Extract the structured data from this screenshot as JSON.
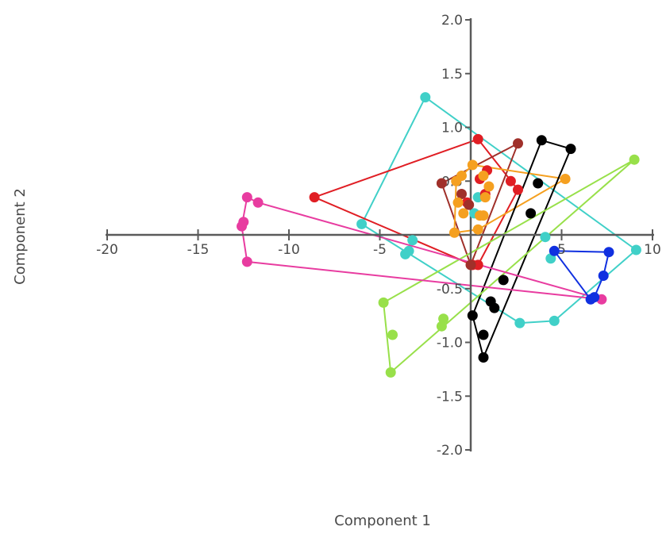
{
  "chart_data": {
    "type": "scatter",
    "xlabel": "Component 1",
    "ylabel": "Component 2",
    "xlim": [
      -20,
      10
    ],
    "ylim": [
      -2.0,
      2.0
    ],
    "x_ticks": [
      -20,
      -15,
      -10,
      -5,
      0,
      5,
      10
    ],
    "x_tick_labels": [
      "-20",
      "-15",
      "-10",
      "-5",
      "",
      "5",
      "10"
    ],
    "y_ticks": [
      -2.0,
      -1.5,
      -1.0,
      -0.5,
      0.0,
      0.5,
      1.0,
      1.5,
      2.0
    ],
    "y_tick_labels": [
      "-2.0",
      "-1.5",
      "-1.0",
      "-0.5",
      "",
      "0.5",
      "1.0",
      "1.5",
      "2.0"
    ],
    "grid": false,
    "series": [
      {
        "color": "#40d0c8",
        "points": [
          [
            -2.5,
            1.28
          ],
          [
            -6.0,
            0.1
          ],
          [
            -3.2,
            -0.05
          ],
          [
            -3.6,
            -0.18
          ],
          [
            -3.4,
            -0.15
          ],
          [
            4.1,
            -0.02
          ],
          [
            4.4,
            -0.22
          ],
          [
            9.1,
            -0.14
          ],
          [
            4.6,
            -0.8
          ],
          [
            2.7,
            -0.82
          ],
          [
            0.4,
            0.35
          ],
          [
            0.2,
            0.2
          ]
        ],
        "hull": [
          [
            -2.5,
            1.28
          ],
          [
            9.1,
            -0.14
          ],
          [
            4.6,
            -0.8
          ],
          [
            2.7,
            -0.82
          ],
          [
            -6.0,
            0.1
          ]
        ]
      },
      {
        "color": "#e01e24",
        "points": [
          [
            0.4,
            0.89
          ],
          [
            -8.6,
            0.35
          ],
          [
            0.5,
            0.52
          ],
          [
            0.9,
            0.6
          ],
          [
            0.8,
            0.38
          ],
          [
            2.2,
            0.5
          ],
          [
            2.6,
            0.42
          ],
          [
            0.1,
            -0.28
          ],
          [
            0.4,
            -0.28
          ],
          [
            -0.2,
            0.3
          ]
        ],
        "hull": [
          [
            0.4,
            0.89
          ],
          [
            2.6,
            0.42
          ],
          [
            0.4,
            -0.28
          ],
          [
            0.1,
            -0.28
          ],
          [
            -8.6,
            0.35
          ]
        ]
      },
      {
        "color": "#a0302a",
        "points": [
          [
            2.6,
            0.85
          ],
          [
            -1.6,
            0.48
          ],
          [
            -0.5,
            0.38
          ],
          [
            -0.1,
            0.28
          ],
          [
            0.0,
            -0.28
          ]
        ],
        "hull": [
          [
            2.6,
            0.85
          ],
          [
            0.0,
            -0.28
          ],
          [
            -1.6,
            0.48
          ]
        ]
      },
      {
        "color": "#f5a020",
        "points": [
          [
            -0.5,
            0.55
          ],
          [
            -0.8,
            0.5
          ],
          [
            -0.7,
            0.3
          ],
          [
            -0.4,
            0.2
          ],
          [
            0.1,
            0.65
          ],
          [
            0.7,
            0.55
          ],
          [
            1.0,
            0.45
          ],
          [
            0.5,
            0.18
          ],
          [
            0.7,
            0.18
          ],
          [
            0.4,
            0.05
          ],
          [
            5.2,
            0.52
          ],
          [
            -0.9,
            0.02
          ],
          [
            0.8,
            0.35
          ]
        ],
        "hull": [
          [
            0.1,
            0.65
          ],
          [
            5.2,
            0.52
          ],
          [
            0.4,
            0.05
          ],
          [
            -0.9,
            0.02
          ],
          [
            -0.8,
            0.5
          ]
        ]
      },
      {
        "color": "#000000",
        "points": [
          [
            3.9,
            0.88
          ],
          [
            5.5,
            0.8
          ],
          [
            3.7,
            0.48
          ],
          [
            3.3,
            0.2
          ],
          [
            1.8,
            -0.42
          ],
          [
            1.1,
            -0.62
          ],
          [
            1.3,
            -0.68
          ],
          [
            0.1,
            -0.75
          ],
          [
            0.7,
            -0.93
          ],
          [
            0.7,
            -1.14
          ]
        ],
        "hull": [
          [
            3.9,
            0.88
          ],
          [
            5.5,
            0.8
          ],
          [
            0.7,
            -1.14
          ],
          [
            0.1,
            -0.75
          ]
        ]
      },
      {
        "color": "#98e04a",
        "points": [
          [
            9.0,
            0.7
          ],
          [
            -4.8,
            -0.63
          ],
          [
            -4.3,
            -0.93
          ],
          [
            -1.5,
            -0.78
          ],
          [
            -1.6,
            -0.85
          ],
          [
            -4.4,
            -1.28
          ]
        ],
        "hull": [
          [
            9.0,
            0.7
          ],
          [
            -4.4,
            -1.28
          ],
          [
            -4.8,
            -0.63
          ]
        ]
      },
      {
        "color": "#e83ca0",
        "points": [
          [
            -12.3,
            0.35
          ],
          [
            -11.7,
            0.3
          ],
          [
            -12.5,
            0.12
          ],
          [
            -12.6,
            0.08
          ],
          [
            -12.3,
            -0.25
          ],
          [
            7.2,
            -0.6
          ]
        ],
        "hull": [
          [
            -12.3,
            0.35
          ],
          [
            -11.7,
            0.3
          ],
          [
            7.2,
            -0.6
          ],
          [
            -12.3,
            -0.25
          ],
          [
            -12.6,
            0.08
          ]
        ]
      },
      {
        "color": "#1030e0",
        "points": [
          [
            4.6,
            -0.15
          ],
          [
            7.6,
            -0.16
          ],
          [
            7.3,
            -0.38
          ],
          [
            6.8,
            -0.58
          ],
          [
            6.6,
            -0.6
          ]
        ],
        "hull": [
          [
            4.6,
            -0.15
          ],
          [
            7.6,
            -0.16
          ],
          [
            7.3,
            -0.38
          ],
          [
            6.8,
            -0.58
          ],
          [
            6.6,
            -0.6
          ]
        ]
      }
    ]
  }
}
